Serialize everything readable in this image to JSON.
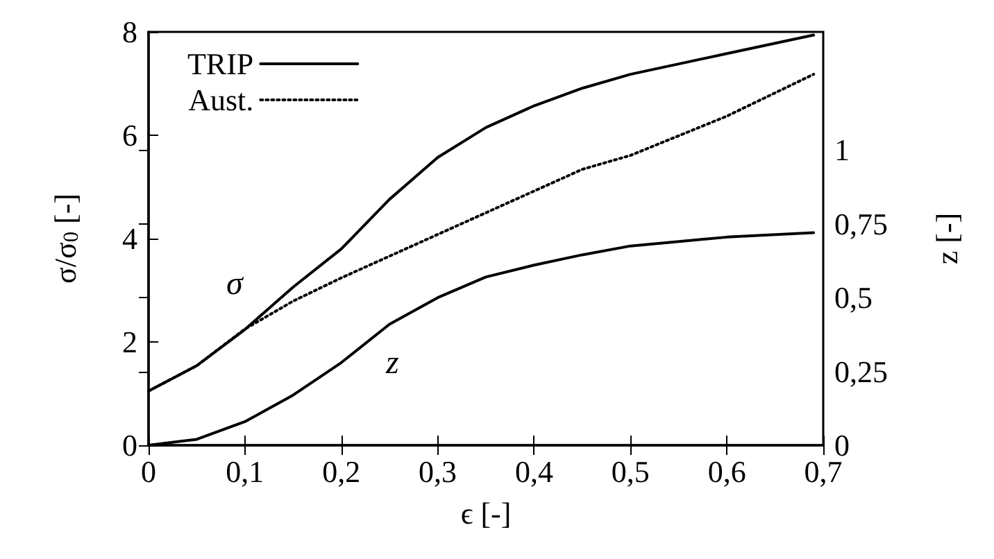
{
  "chart_data": {
    "type": "line",
    "xlabel": "ϵ [-]",
    "ylabel": "σ/σ$_{0}$ [-]",
    "y2label": "z [-]",
    "xlim": [
      0,
      0.7
    ],
    "xticks": [
      0,
      {
        "value": 0.1,
        "label": "0,1"
      },
      {
        "value": 0.2,
        "label": "0,2"
      },
      {
        "value": 0.3,
        "label": "0,3"
      },
      {
        "value": 0.4,
        "label": "0,4"
      },
      {
        "value": 0.5,
        "label": "0,5"
      },
      {
        "value": 0.6,
        "label": "0,6"
      },
      {
        "value": 0.7,
        "label": "0,7"
      }
    ],
    "ylim": [
      0,
      8
    ],
    "yticks": [
      0,
      2,
      4,
      6,
      8
    ],
    "y2lim": [
      0,
      1.4
    ],
    "y2ticks": [
      0,
      {
        "value": 0.25,
        "label": "0,25"
      },
      {
        "value": 0.5,
        "label": "0,5"
      },
      {
        "value": 0.75,
        "label": "0,75"
      },
      1
    ],
    "x": [
      0,
      0.05,
      0.1,
      0.15,
      0.2,
      0.25,
      0.3,
      0.35,
      0.4,
      0.45,
      0.5,
      0.6,
      0.69
    ],
    "series": [
      {
        "name": "TRIP",
        "color": "#000000",
        "line_style": "solid",
        "values": [
          1.05,
          1.54,
          2.24,
          3.06,
          3.8,
          4.76,
          5.57,
          6.15,
          6.57,
          6.91,
          7.18,
          7.58,
          7.94
        ]
      },
      {
        "name": "Aust.",
        "color": "#000000",
        "line_style": "dotted",
        "values": [
          1.05,
          1.54,
          2.25,
          2.79,
          3.24,
          3.66,
          4.08,
          4.5,
          4.92,
          5.34,
          5.61,
          6.37,
          7.18
        ]
      },
      {
        "color": "#000000",
        "line_style": "solid",
        "axis": "y2",
        "values": [
          0,
          0.02,
          0.08,
          0.17,
          0.28,
          0.41,
          0.5,
          0.57,
          0.61,
          0.645,
          0.675,
          0.705,
          0.72
        ]
      }
    ],
    "annotations": [
      "σ",
      "z"
    ],
    "legend": "top left",
    "grid": false,
    "marker": "none"
  }
}
